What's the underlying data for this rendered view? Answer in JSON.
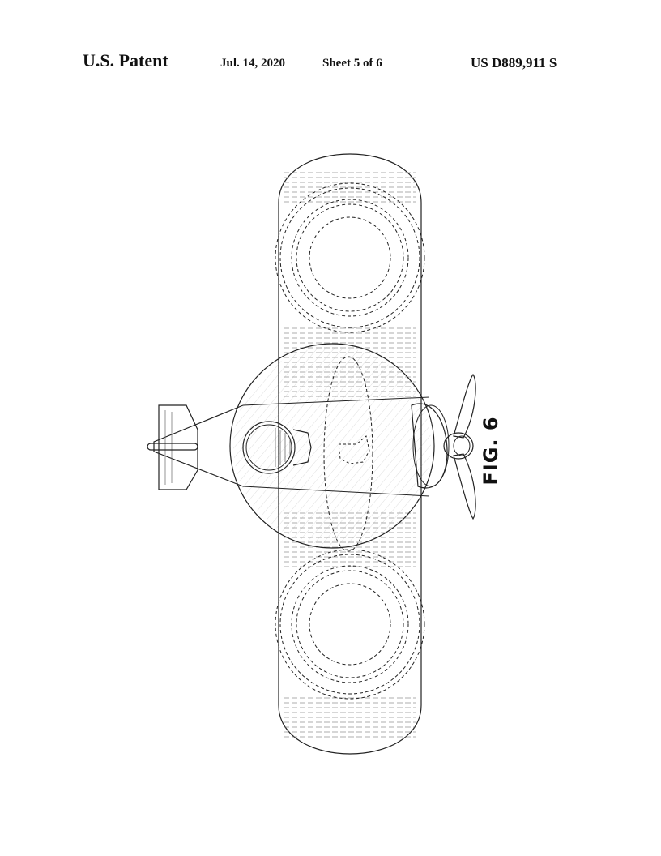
{
  "header": {
    "patent_label": "U.S. Patent",
    "date": "Jul. 14, 2020",
    "sheet": "Sheet 5 of 6",
    "patent_number": "US D889,911 S"
  },
  "figure": {
    "label": "FIG. 6"
  }
}
